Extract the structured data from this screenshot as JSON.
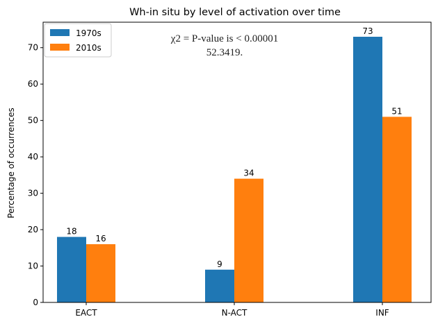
{
  "chart_data": {
    "type": "bar",
    "title": "Wh-in situ by level of activation over time",
    "xlabel": "",
    "ylabel": "Percentage of occurrences",
    "categories": [
      "EACT",
      "N-ACT",
      "INF"
    ],
    "series": [
      {
        "name": "1970s",
        "values": [
          18,
          9,
          73
        ],
        "color": "#1f77b4"
      },
      {
        "name": "2010s",
        "values": [
          16,
          34,
          51
        ],
        "color": "#ff7f0e"
      }
    ],
    "ylim": [
      0,
      77
    ],
    "yticks": [
      0,
      10,
      20,
      30,
      40,
      50,
      60,
      70
    ],
    "grid": false,
    "legend": "top-left",
    "annotation": {
      "line1": "χ2 = P-value is < 0.00001",
      "line2": "52.3419."
    }
  }
}
